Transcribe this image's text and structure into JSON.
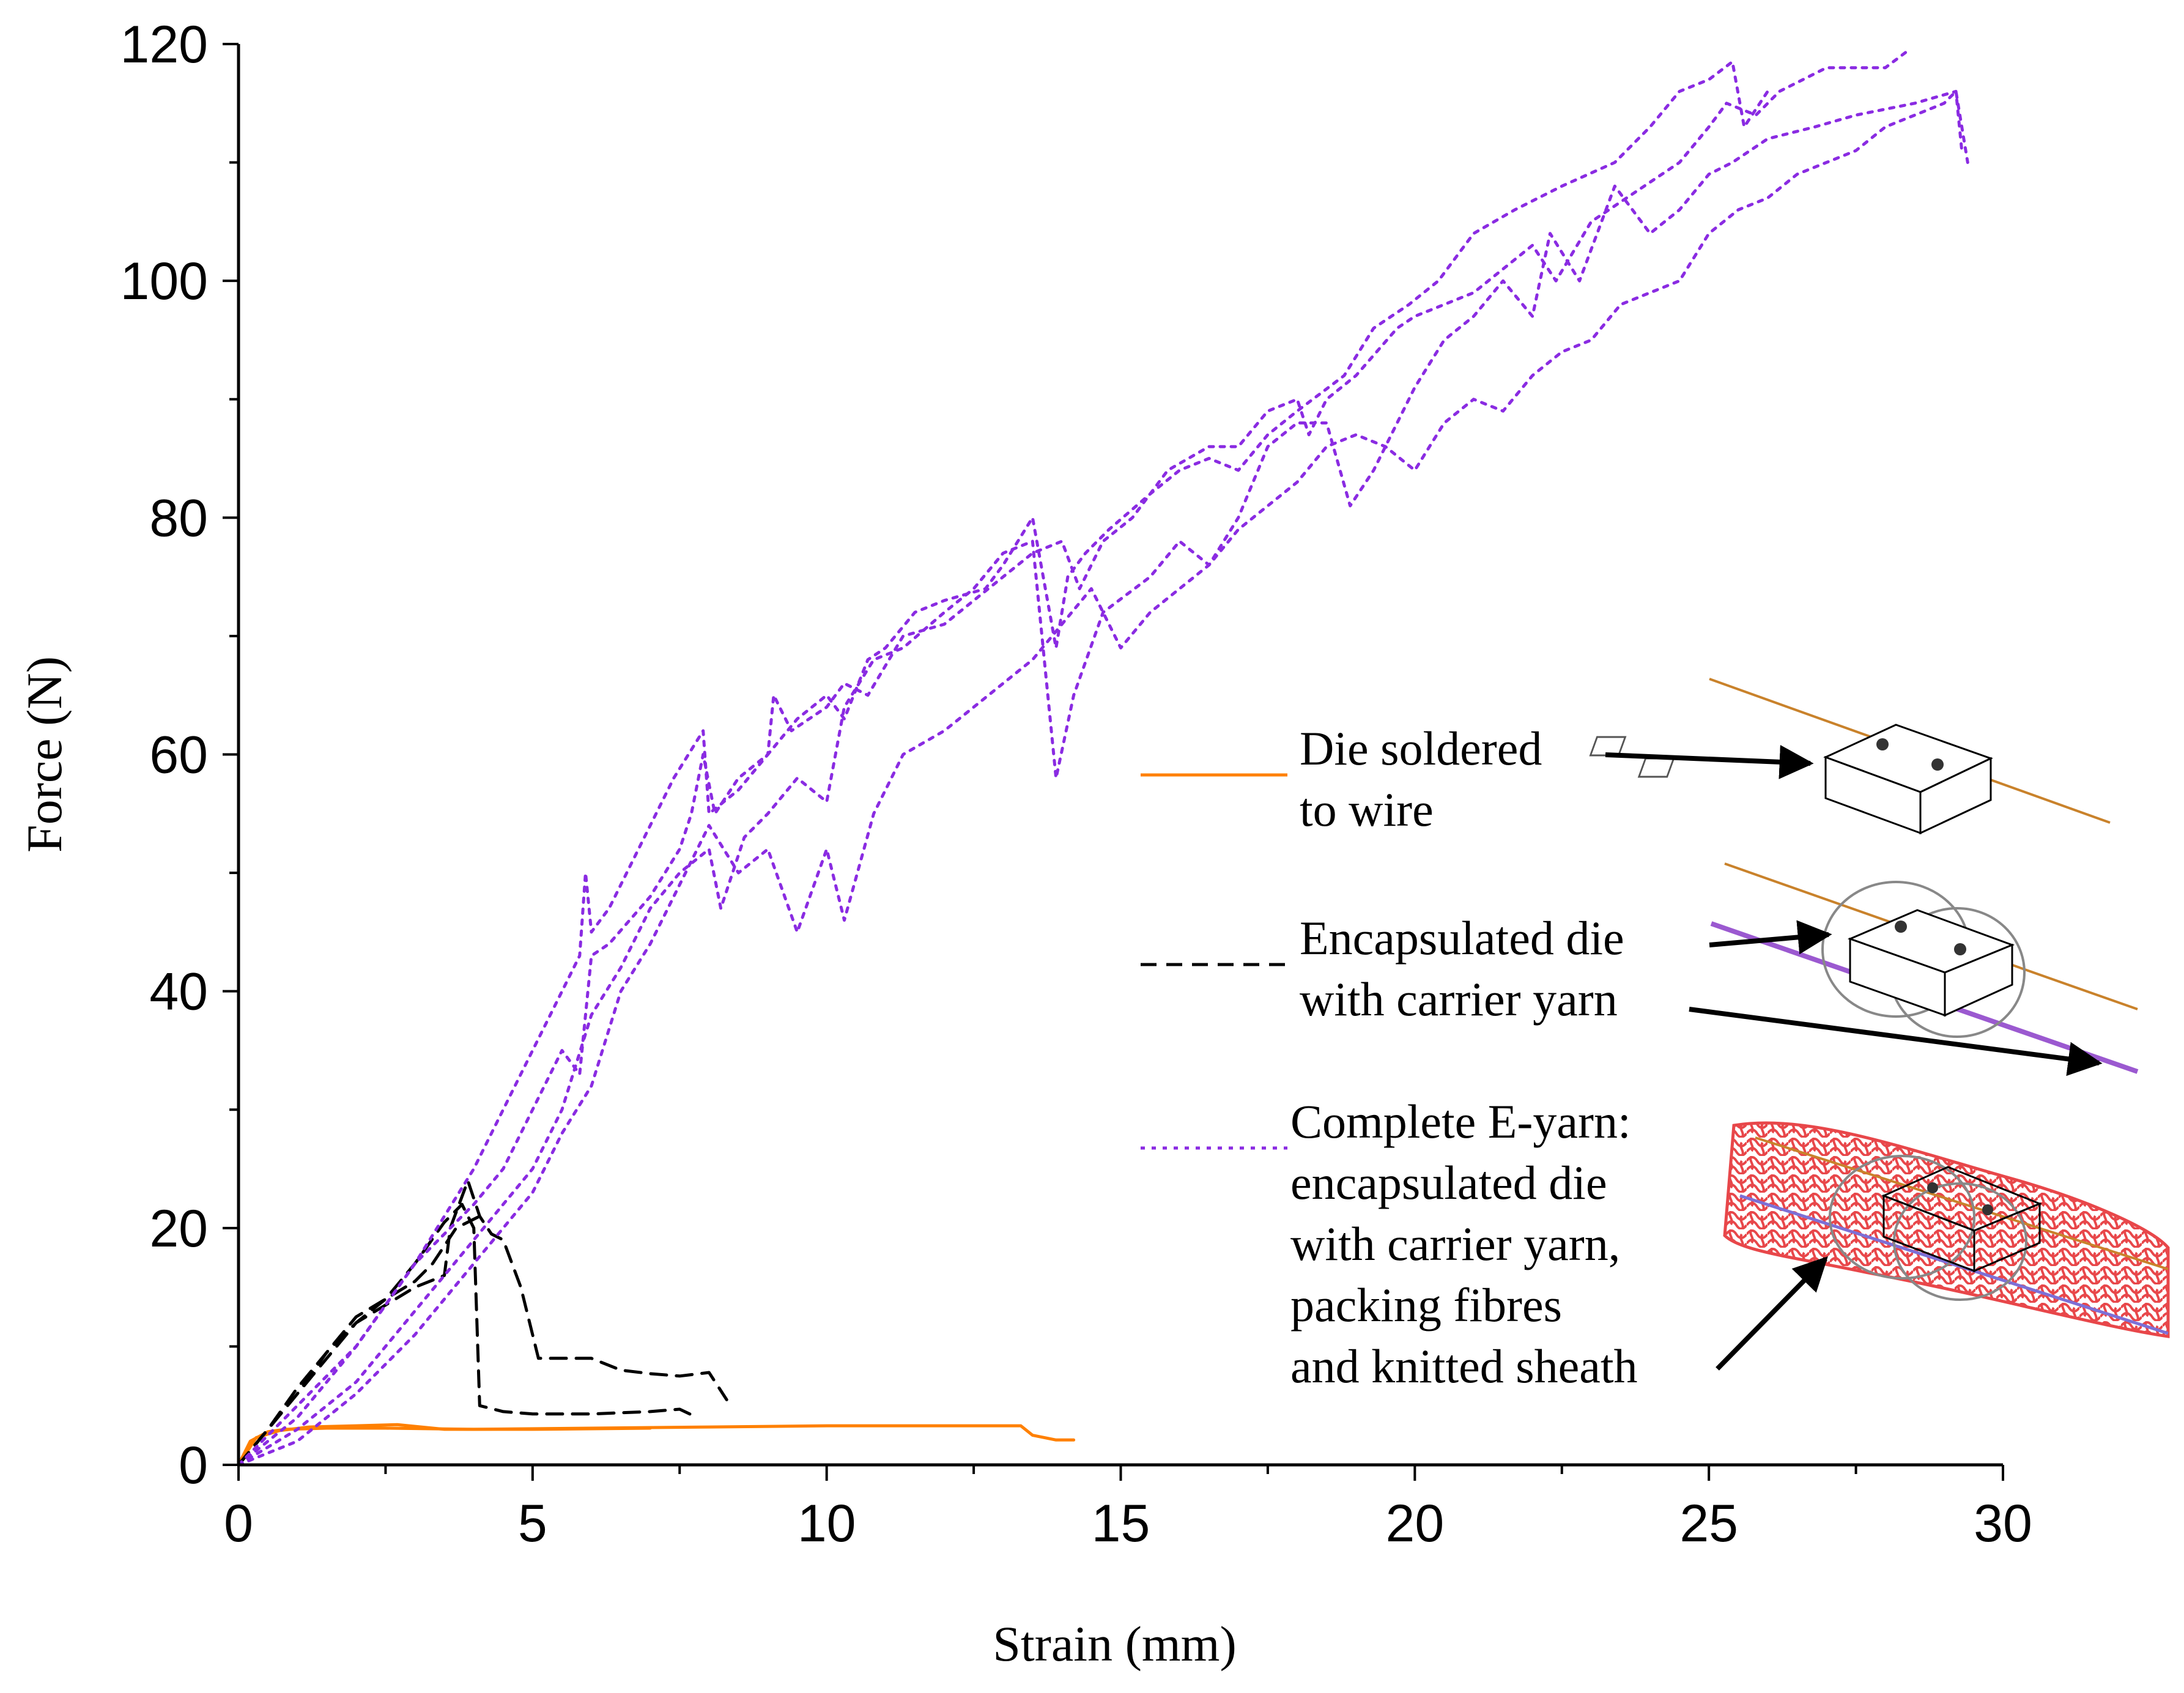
{
  "chart_data": {
    "type": "line",
    "title": "",
    "xlabel": "Strain (mm)",
    "ylabel": "Force (N)",
    "xlim": [
      0,
      30
    ],
    "ylim": [
      0,
      120
    ],
    "xticks": [
      0,
      5,
      10,
      15,
      20,
      25,
      30
    ],
    "yticks": [
      0,
      20,
      40,
      60,
      80,
      100,
      120
    ],
    "grid": false,
    "legend_position": "right",
    "series": [
      {
        "name": "Die soldered to wire",
        "legend_lines": [
          "Die soldered",
          "to wire"
        ],
        "color": "#ff8000",
        "style": "solid",
        "curves": [
          {
            "x": [
              0,
              0.2,
              0.5,
              0.8,
              1.5,
              2.5,
              4,
              6,
              8,
              10,
              12,
              13.3,
              13.5,
              13.9,
              14.2
            ],
            "y": [
              0,
              2.0,
              2.8,
              3.0,
              3.1,
              3.1,
              3.0,
              3.1,
              3.2,
              3.3,
              3.3,
              3.3,
              2.5,
              2.1,
              2.1
            ]
          },
          {
            "x": [
              0,
              0.3,
              0.7,
              1.2,
              2,
              2.7,
              3.5,
              5,
              7
            ],
            "y": [
              0,
              2.3,
              2.9,
              3.2,
              3.3,
              3.4,
              3.0,
              3.0,
              3.1
            ]
          }
        ]
      },
      {
        "name": "Encapsulated die with carrier yarn",
        "legend_lines": [
          "Encapsulated die",
          "with carrier yarn"
        ],
        "color": "#000000",
        "style": "dashed",
        "curves": [
          {
            "x": [
              0,
              0.5,
              1,
              1.5,
              2,
              2.5,
              3,
              3.5,
              3.8,
              4.0,
              4.1,
              4.5,
              5.0,
              6.0,
              7.0,
              7.5,
              7.8
            ],
            "y": [
              0,
              3,
              6.5,
              9.5,
              12,
              14,
              17,
              20.5,
              22,
              20,
              5,
              4.5,
              4.3,
              4.3,
              4.5,
              4.7,
              4.0
            ]
          },
          {
            "x": [
              0,
              0.5,
              1,
              1.5,
              2,
              2.5,
              3,
              3.5,
              3.6,
              3.9,
              4.1,
              4.3,
              4.5,
              4.8,
              5.1,
              5.5,
              6,
              6.5,
              7,
              7.5,
              8.0,
              8.3
            ],
            "y": [
              0,
              3,
              6,
              9,
              12,
              13.5,
              15,
              16,
              20,
              24,
              21,
              19.5,
              19,
              15,
              9,
              9,
              9,
              8,
              7.7,
              7.5,
              7.8,
              5.5
            ]
          },
          {
            "x": [
              0,
              0.5,
              1,
              1.5,
              2,
              2.5,
              3,
              3.3,
              3.7,
              4.1
            ],
            "y": [
              0,
              3,
              6,
              9.5,
              12.5,
              14,
              15.5,
              17,
              20,
              21
            ]
          }
        ]
      },
      {
        "name": "Complete E-yarn: encapsulated die with carrier yarn, packing fibres and knitted sheath",
        "legend_lines": [
          "Complete E-yarn:",
          "encapsulated die",
          "with carrier yarn,",
          "packing fibres",
          "and knitted sheath"
        ],
        "color": "#8a2be2",
        "style": "dotted",
        "curves": [
          {
            "x": [
              0,
              1,
              2,
              3,
              4,
              5,
              5.8,
              5.9,
              6.0,
              6.3,
              6.8,
              7.4,
              7.9,
              8.0,
              8.5,
              9.0,
              9.1,
              9.4,
              10,
              10.3,
              10.7,
              11.3,
              12,
              12.5,
              13,
              13.5,
              14,
              14.3,
              14.7,
              15.2,
              15.8,
              16.5,
              17,
              17.5,
              18,
              18.2,
              18.5,
              19,
              19.7,
              20,
              21,
              22,
              22.4,
              23,
              23.6,
              24.5,
              25,
              25.3,
              25.8,
              26.2,
              27,
              28,
              28.4
            ],
            "y": [
              0,
              5,
              10,
              17,
              25,
              35,
              43,
              50,
              45,
              47,
              52,
              58,
              62,
              55,
              57,
              60,
              65,
              62,
              64,
              66,
              65,
              70,
              71,
              73,
              75,
              77,
              78,
              74,
              78,
              80,
              84,
              86,
              86,
              89,
              90,
              87,
              90,
              92,
              96,
              97,
              99,
              103,
              100,
              105,
              107,
              110,
              113,
              115,
              114,
              116,
              118,
              118,
              119.5
            ]
          },
          {
            "x": [
              0,
              1,
              2,
              3,
              4,
              4.5,
              5,
              5.5,
              5.8,
              6.0,
              6.3,
              7.0,
              7.5,
              7.7,
              7.9,
              8.1,
              8.5,
              9,
              9.5,
              10,
              10.3,
              10.7,
              11,
              11.5,
              12,
              12.7,
              13,
              13.5,
              13.9,
              14.1,
              14.4,
              14.8,
              15.5,
              16,
              16.5,
              17,
              17.5,
              18,
              18.8,
              19.3,
              19.9,
              20.4,
              21,
              21.7,
              22.5,
              23.4,
              24,
              24.5,
              25,
              25.4,
              25.6,
              26
            ],
            "y": [
              0,
              4,
              10,
              17,
              22,
              25,
              30,
              35,
              33,
              43,
              44,
              48,
              52,
              55,
              60,
              55,
              58,
              60,
              63,
              65,
              63,
              68,
              69,
              72,
              73,
              74,
              76,
              80,
              69,
              75,
              77,
              79,
              82,
              84,
              85,
              84,
              87,
              89,
              92,
              96,
              98,
              100,
              104,
              106,
              108,
              110,
              113,
              116,
              117,
              118.5,
              113,
              116
            ]
          },
          {
            "x": [
              0,
              1,
              2,
              3,
              4,
              5,
              5.5,
              6,
              6.5,
              7,
              7.5,
              8,
              8.2,
              8.6,
              9,
              9.5,
              10,
              10.3,
              10.8,
              11.3,
              12,
              12.5,
              13,
              13.5,
              13.9,
              14.2,
              14.7,
              15.5,
              16,
              16.5,
              17,
              17.5,
              18,
              18.5,
              18.9,
              19.3,
              20,
              20.5,
              21,
              21.5,
              22,
              22.3,
              22.8,
              23.4,
              24,
              24.5,
              25,
              25.4,
              26,
              26.8,
              27.5,
              28.5,
              29.2,
              29.3
            ],
            "y": [
              0,
              3,
              7,
              13,
              19,
              25,
              30,
              38,
              42,
              47,
              50,
              52,
              47,
              53,
              55,
              58,
              56,
              64,
              68,
              69,
              72,
              74,
              77,
              78,
              58,
              65,
              72,
              75,
              78,
              76,
              80,
              86,
              88,
              88,
              81,
              84,
              91,
              95,
              97,
              100,
              97,
              104,
              100,
              108,
              104,
              106,
              109,
              110,
              112,
              113,
              114,
              115,
              116,
              111
            ]
          },
          {
            "x": [
              0,
              1,
              2,
              3,
              4,
              5,
              5.5,
              6,
              6.5,
              7,
              7.5,
              8,
              8.5,
              9,
              9.5,
              10,
              10.3,
              10.8,
              11.3,
              12,
              12.5,
              13,
              13.5,
              14,
              14.5,
              15,
              15.5,
              16,
              16.5,
              17,
              17.5,
              18,
              18.5,
              19,
              19.5,
              20,
              20.5,
              21,
              21.5,
              22,
              22.5,
              23,
              23.5,
              24,
              24.5,
              25,
              25.5,
              26,
              26.5,
              27,
              27.5,
              28,
              28.5,
              29,
              29.2,
              29.4
            ],
            "y": [
              0,
              2,
              6,
              11,
              17,
              23,
              28,
              32,
              40,
              44,
              49,
              54,
              50,
              52,
              45,
              52,
              46,
              55,
              60,
              62,
              64,
              66,
              68,
              71,
              74,
              69,
              72,
              74,
              76,
              79,
              81,
              83,
              86,
              87,
              86,
              84,
              88,
              90,
              89,
              92,
              94,
              95,
              98,
              99,
              100,
              104,
              106,
              107,
              109,
              110,
              111,
              113,
              114,
              115,
              116,
              110
            ]
          }
        ]
      }
    ]
  }
}
